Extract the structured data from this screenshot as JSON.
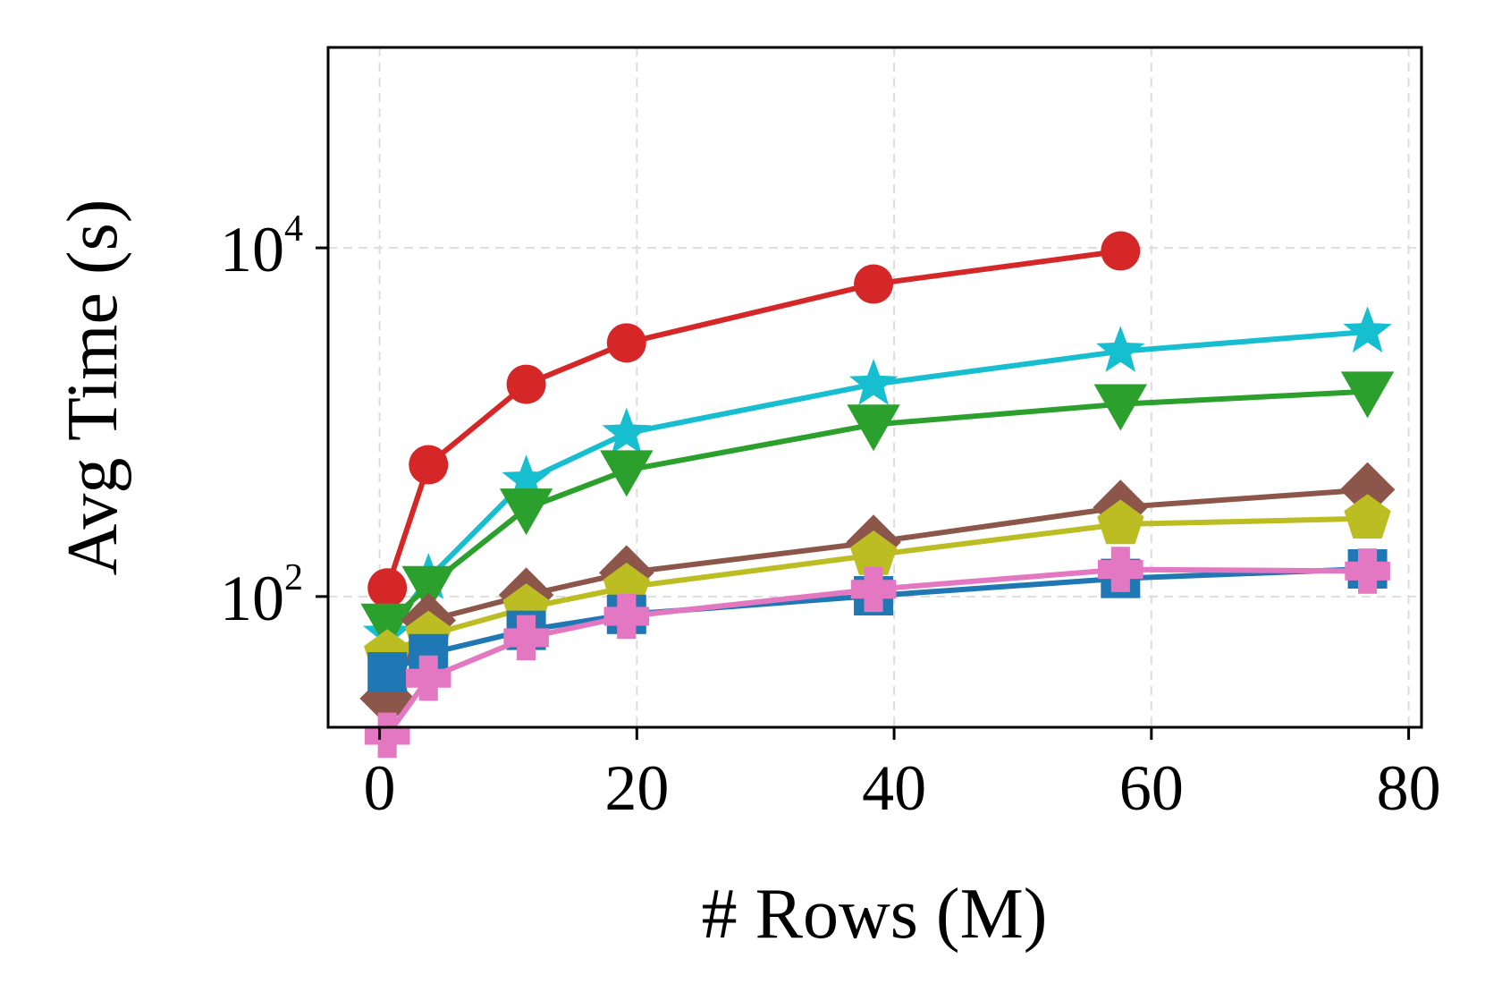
{
  "chart_data": {
    "type": "line",
    "title": "",
    "xlabel": "# Rows (M)",
    "ylabel": "Avg Time (s)",
    "xlim": [
      -4,
      81
    ],
    "ylim_log10": [
      1.25,
      5.15
    ],
    "yscale": "log",
    "grid": true,
    "x_ticks": [
      {
        "value": 0,
        "label": "0"
      },
      {
        "value": 20,
        "label": "20"
      },
      {
        "value": 40,
        "label": "40"
      },
      {
        "value": 60,
        "label": "60"
      },
      {
        "value": 80,
        "label": "80"
      }
    ],
    "y_ticks": [
      {
        "value": 100,
        "base": "10",
        "exp": "2"
      },
      {
        "value": 10000,
        "base": "10",
        "exp": "4"
      }
    ],
    "x": [
      0.6,
      3.8,
      11.4,
      19.2,
      38.4,
      57.6,
      76.8
    ],
    "series": [
      {
        "name": "red-circle",
        "color": "#d62728",
        "marker": "circle",
        "x": [
          0.6,
          3.8,
          11.4,
          19.2,
          38.4,
          57.6
        ],
        "values": [
          112,
          570,
          1650,
          2850,
          6200,
          9600
        ]
      },
      {
        "name": "cyan-star",
        "color": "#17becf",
        "marker": "star",
        "x": [
          0.6,
          3.8,
          11.4,
          19.2,
          38.4,
          57.6,
          76.8
        ],
        "values": [
          61,
          127,
          465,
          865,
          1650,
          2550,
          3300
        ]
      },
      {
        "name": "green-triangle",
        "color": "#2ca02c",
        "marker": "triangle-down",
        "x": [
          0.6,
          3.8,
          11.4,
          19.2,
          38.4,
          57.6,
          76.8
        ],
        "values": [
          70,
          115,
          320,
          530,
          970,
          1270,
          1500
        ]
      },
      {
        "name": "brown-diamond",
        "color": "#8c564b",
        "marker": "diamond",
        "x": [
          0.6,
          3.8,
          11.4,
          19.2,
          38.4,
          57.6,
          76.8
        ],
        "values": [
          26,
          73,
          102,
          137,
          205,
          325,
          410
        ]
      },
      {
        "name": "olive-pentagon",
        "color": "#bcbd22",
        "marker": "pentagon",
        "x": [
          0.6,
          3.8,
          11.4,
          19.2,
          38.4,
          57.6,
          76.8
        ],
        "values": [
          47,
          60,
          86,
          113,
          173,
          260,
          280
        ]
      },
      {
        "name": "blue-square",
        "color": "#1f77b4",
        "marker": "square",
        "x": [
          0.6,
          3.8,
          11.4,
          19.2,
          38.4,
          57.6,
          76.8
        ],
        "values": [
          37,
          47,
          64,
          79,
          101,
          127,
          144
        ]
      },
      {
        "name": "pink-plus",
        "color": "#e377c2",
        "marker": "plus",
        "x": [
          0.6,
          3.8,
          11.4,
          19.2,
          38.4,
          57.6,
          76.8
        ],
        "values": [
          16,
          34,
          58,
          77,
          110,
          143,
          140
        ]
      }
    ]
  }
}
